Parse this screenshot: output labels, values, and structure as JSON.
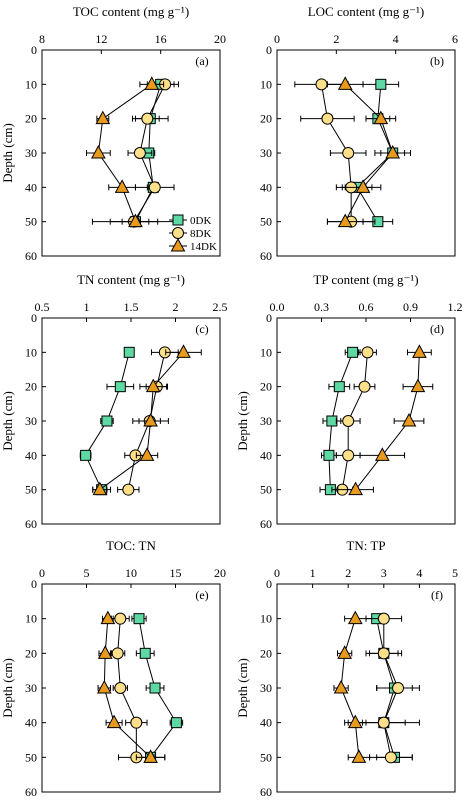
{
  "colors": {
    "0DK": "#5fd9a4",
    "8DK": "#ffe08a",
    "14DK": "#e89a1e",
    "axis": "#000000"
  },
  "legend": {
    "items": [
      "0DK",
      "8DK",
      "14DK"
    ],
    "placement": "bottom-right of panel (a)"
  },
  "chart_data": [
    {
      "type": "line",
      "panel_label": "(a)",
      "title": "TOC content (mg g⁻¹)",
      "xlim": [
        8,
        20
      ],
      "xticks": [
        8,
        12,
        16,
        20
      ],
      "ylabel": "Depth (cm)",
      "ylim": [
        0,
        60
      ],
      "yticks": [
        0,
        10,
        20,
        30,
        40,
        50,
        60
      ],
      "y_inverted": true,
      "depth": [
        10,
        20,
        30,
        40,
        50
      ],
      "series": [
        {
          "name": "0DK",
          "marker": "square",
          "values": [
            16.0,
            15.3,
            15.2,
            15.5,
            14.3
          ],
          "err": [
            0.9,
            1.2,
            0.4,
            0.4,
            2.9
          ]
        },
        {
          "name": "8DK",
          "marker": "circle",
          "values": [
            16.3,
            15.1,
            14.6,
            15.6,
            14.2
          ],
          "err": [
            0.9,
            0.8,
            0.8,
            1.3,
            1.6
          ]
        },
        {
          "name": "14DK",
          "marker": "triangle",
          "values": [
            15.4,
            12.1,
            11.8,
            13.4,
            14.3
          ],
          "err": [
            0.8,
            0.4,
            0.8,
            0.9,
            0.9
          ]
        }
      ]
    },
    {
      "type": "line",
      "panel_label": "(b)",
      "title": "LOC content (mg g⁻¹)",
      "xlim": [
        0,
        6
      ],
      "xticks": [
        0,
        2,
        4,
        6
      ],
      "ylabel": "",
      "ylim": [
        0,
        60
      ],
      "yticks": [
        0,
        10,
        20,
        30,
        40,
        50,
        60
      ],
      "y_inverted": true,
      "depth": [
        10,
        20,
        30,
        40,
        50
      ],
      "series": [
        {
          "name": "0DK",
          "marker": "square",
          "values": [
            3.5,
            3.4,
            3.9,
            2.7,
            3.4
          ],
          "err": [
            0.6,
            0.4,
            0.4,
            0.5,
            0.5
          ]
        },
        {
          "name": "8DK",
          "marker": "circle",
          "values": [
            1.5,
            1.7,
            2.4,
            2.5,
            2.5
          ],
          "err": [
            0.9,
            0.9,
            0.6,
            0.5,
            0.8
          ]
        },
        {
          "name": "14DK",
          "marker": "triangle",
          "values": [
            2.3,
            3.5,
            3.9,
            2.9,
            2.3
          ],
          "err": [
            0.6,
            0.5,
            0.6,
            0.6,
            0.6
          ]
        }
      ]
    },
    {
      "type": "line",
      "panel_label": "(c)",
      "title": "TN content (mg g⁻¹)",
      "xlim": [
        0.5,
        2.5
      ],
      "xticks": [
        0.5,
        1.0,
        1.5,
        2.0,
        2.5
      ],
      "ylabel": "Depth (cm)",
      "ylim": [
        0,
        60
      ],
      "yticks": [
        0,
        10,
        20,
        30,
        40,
        50,
        60
      ],
      "y_inverted": true,
      "depth": [
        10,
        20,
        30,
        40,
        50
      ],
      "series": [
        {
          "name": "0DK",
          "marker": "square",
          "values": [
            1.48,
            1.38,
            1.23,
            0.99,
            1.17
          ],
          "err": [
            0.05,
            0.15,
            0.07,
            0.06,
            0.1
          ]
        },
        {
          "name": "8DK",
          "marker": "circle",
          "values": [
            1.88,
            1.79,
            1.71,
            1.55,
            1.47
          ],
          "err": [
            0.15,
            0.12,
            0.12,
            0.12,
            0.12
          ]
        },
        {
          "name": "14DK",
          "marker": "triangle",
          "values": [
            2.09,
            1.75,
            1.72,
            1.68,
            1.15
          ],
          "err": [
            0.2,
            0.15,
            0.2,
            0.12,
            0.08
          ]
        }
      ]
    },
    {
      "type": "line",
      "panel_label": "(d)",
      "title": "TP content (mg g⁻¹)",
      "xlim": [
        0.0,
        1.2
      ],
      "xticks": [
        0.0,
        0.3,
        0.6,
        0.9,
        1.2
      ],
      "ylabel": "Depth (cm)",
      "ylim": [
        0,
        60
      ],
      "yticks": [
        0,
        10,
        20,
        30,
        40,
        50,
        60
      ],
      "y_inverted": true,
      "depth": [
        10,
        20,
        30,
        40,
        50
      ],
      "series": [
        {
          "name": "0DK",
          "marker": "square",
          "values": [
            0.51,
            0.42,
            0.37,
            0.35,
            0.36
          ],
          "err": [
            0.05,
            0.07,
            0.06,
            0.05,
            0.07
          ]
        },
        {
          "name": "8DK",
          "marker": "circle",
          "values": [
            0.61,
            0.59,
            0.48,
            0.48,
            0.44
          ],
          "err": [
            0.06,
            0.07,
            0.08,
            0.08,
            0.07
          ]
        },
        {
          "name": "14DK",
          "marker": "triangle",
          "values": [
            0.96,
            0.95,
            0.89,
            0.71,
            0.53
          ],
          "err": [
            0.08,
            0.1,
            0.1,
            0.15,
            0.12
          ]
        }
      ]
    },
    {
      "type": "line",
      "panel_label": "(e)",
      "title": "TOC: TN",
      "xlim": [
        0,
        20
      ],
      "xticks": [
        0,
        5,
        10,
        15,
        20
      ],
      "ylabel": "Depth (cm)",
      "ylim": [
        0,
        60
      ],
      "yticks": [
        0,
        10,
        20,
        30,
        40,
        50,
        60
      ],
      "y_inverted": true,
      "depth": [
        10,
        20,
        30,
        40,
        50
      ],
      "series": [
        {
          "name": "0DK",
          "marker": "square",
          "values": [
            10.9,
            11.6,
            12.7,
            15.1,
            12.2
          ],
          "err": [
            0.8,
            1.0,
            1.0,
            0.7,
            1.6
          ]
        },
        {
          "name": "8DK",
          "marker": "circle",
          "values": [
            8.8,
            8.5,
            8.8,
            10.6,
            10.6
          ],
          "err": [
            1.0,
            0.8,
            0.8,
            1.2,
            2.0
          ]
        },
        {
          "name": "14DK",
          "marker": "triangle",
          "values": [
            7.4,
            7.1,
            7.0,
            8.1,
            12.2
          ],
          "err": [
            0.6,
            0.7,
            0.7,
            0.9,
            1.6
          ]
        }
      ]
    },
    {
      "type": "line",
      "panel_label": "(f)",
      "title": "TN: TP",
      "xlim": [
        0,
        5
      ],
      "xticks": [
        0,
        1,
        2,
        3,
        4,
        5
      ],
      "ylabel": "Depth (cm)",
      "ylim": [
        0,
        60
      ],
      "yticks": [
        0,
        10,
        20,
        30,
        40,
        50,
        60
      ],
      "y_inverted": true,
      "depth": [
        10,
        20,
        30,
        40,
        50
      ],
      "series": [
        {
          "name": "0DK",
          "marker": "square",
          "values": [
            2.8,
            3.0,
            3.3,
            3.0,
            3.3
          ],
          "err": [
            0.3,
            0.5,
            0.5,
            0.6,
            0.5
          ]
        },
        {
          "name": "8DK",
          "marker": "circle",
          "values": [
            3.0,
            3.0,
            3.4,
            3.0,
            3.2
          ],
          "err": [
            0.5,
            0.4,
            0.6,
            1.0,
            0.6
          ]
        },
        {
          "name": "14DK",
          "marker": "triangle",
          "values": [
            2.2,
            1.9,
            1.8,
            2.2,
            2.3
          ],
          "err": [
            0.3,
            0.2,
            0.2,
            0.3,
            0.3
          ]
        }
      ]
    }
  ]
}
